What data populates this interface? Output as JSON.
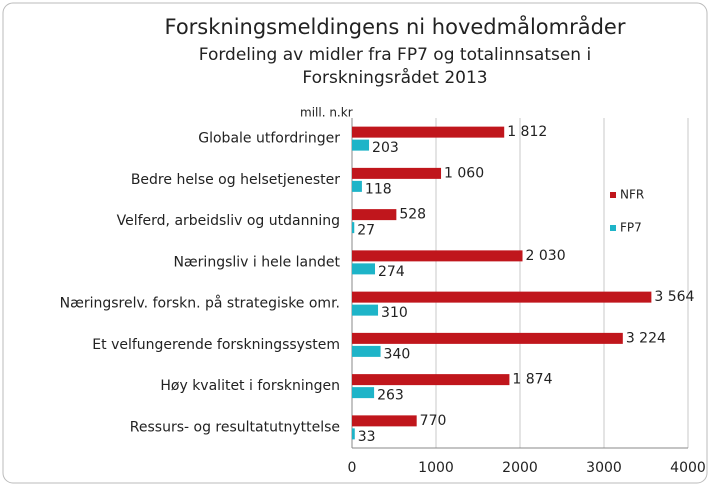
{
  "chart_data": {
    "type": "hbar",
    "title": "Forskningsmeldingens ni hovedmålområder",
    "subtitle": [
      "Fordeling av midler  fra FP7 og totalinnsatsen i",
      "Forskningsrådet 2013"
    ],
    "x_label": "mill. n.kr",
    "categories": [
      "Globale utfordringer",
      "Bedre helse og helsetjenester",
      "Velferd, arbeidsliv og utdanning",
      "Næringsliv i hele landet",
      "Næringsrelv. forskn. på strategiske omr.",
      "Et velfungerende forskningssystem",
      "Høy kvalitet i forskningen",
      "Ressurs- og resultatutnyttelse"
    ],
    "series": [
      {
        "name": "NFR",
        "color": "#c0161c",
        "values": [
          1812,
          1060,
          528,
          2030,
          3564,
          3224,
          1874,
          770
        ],
        "value_labels": [
          "1 812",
          "1 060",
          "528",
          "2 030",
          "3 564",
          "3 224",
          "1 874",
          "770"
        ]
      },
      {
        "name": "FP7",
        "color": "#1eb4c8",
        "values": [
          203,
          118,
          27,
          274,
          310,
          340,
          263,
          33
        ]
      }
    ],
    "xlim": [
      0,
      4000
    ],
    "xticks": [
      0,
      1000,
      2000,
      3000,
      4000
    ],
    "grid": true,
    "legend": "right"
  }
}
